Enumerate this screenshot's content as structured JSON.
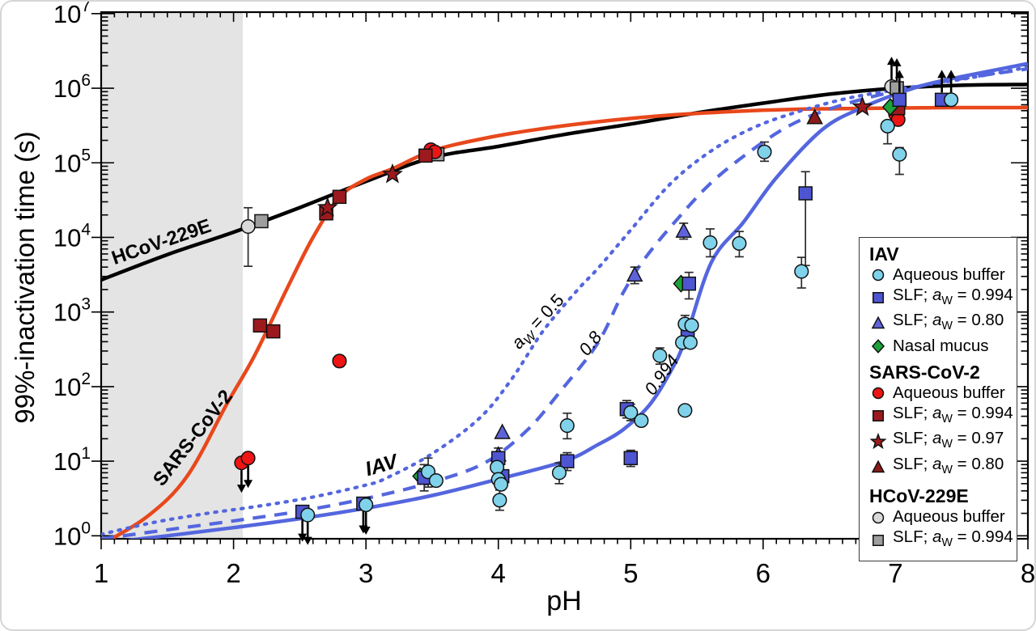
{
  "axes": {
    "x": {
      "label": "pH",
      "min": 1,
      "max": 8,
      "major_ticks": [
        1,
        2,
        3,
        4,
        5,
        6,
        7,
        8
      ],
      "minor_step": 0.1
    },
    "y": {
      "label": "99%-inactivation time (s)",
      "scale": "log",
      "tick_exponents": [
        0,
        1,
        2,
        3,
        4,
        5,
        6,
        7
      ]
    }
  },
  "shaded_region": {
    "from_ph": 1.0,
    "to_ph": 2.07,
    "color": "#E4E4E4"
  },
  "colors": {
    "black_curve": "#000000",
    "red_curve": "#E8481C",
    "blue_curve": "#5466DE",
    "iav_aqueous": "#7FD2EA",
    "iav_slf994": "#4E55D2",
    "iav_slf80": "#5F63DA",
    "iav_mucus": "#1CA23A",
    "sars_aqueous": "#EE1515",
    "sars_dark_red": "#9C1A1E",
    "sars_slf80": "#8C1A1A",
    "hcov_aqueous": "#D9D9D9",
    "hcov_slf994": "#9E9E9E",
    "error_bar": "#2b2b2b",
    "frame": "#000000"
  },
  "curve_labels": [
    {
      "id": "hcov",
      "text": "HCoV-229E",
      "ph": 1.47,
      "log_t": 3.86,
      "rot": -19,
      "bold": true,
      "italic": false,
      "size": 24
    },
    {
      "id": "sars",
      "text": "SARS-CoV-2",
      "ph": 1.73,
      "log_t": 1.26,
      "rot": -52,
      "bold": true,
      "italic": false,
      "size": 24
    },
    {
      "id": "iav",
      "text": "IAV",
      "ph": 3.13,
      "log_t": 0.86,
      "rot": -16,
      "bold": true,
      "italic": true,
      "size": 25
    },
    {
      "id": "aw05",
      "pre": "a",
      "sub": "W",
      "post": " = 0.5",
      "ph": 4.33,
      "log_t": 2.82,
      "rot": -47,
      "bold": false,
      "italic": true,
      "size": 22
    },
    {
      "id": "aw08",
      "text": "0.8",
      "ph": 4.73,
      "log_t": 2.53,
      "rot": -52,
      "bold": false,
      "italic": true,
      "size": 22
    },
    {
      "id": "aw0994",
      "text": "0.994",
      "ph": 5.27,
      "log_t": 2.11,
      "rot": -54,
      "bold": false,
      "italic": true,
      "size": 22
    }
  ],
  "chart_data": {
    "type": "line+scatter",
    "title": "",
    "xlabel": "pH",
    "ylabel": "99%-inactivation time (s)",
    "x_range": [
      1,
      8
    ],
    "y_range_log10": [
      -0.04,
      7.02
    ],
    "grid": false,
    "legend_position": "right-middle",
    "curves": [
      {
        "id": "hcov-fit",
        "name": "HCoV-229E fit",
        "style": "solid",
        "color": "#000000",
        "width": 4.5,
        "points_ph_log10t": [
          [
            1,
            3.43
          ],
          [
            1.5,
            3.77
          ],
          [
            2,
            4.07
          ],
          [
            2.5,
            4.4
          ],
          [
            3,
            4.75
          ],
          [
            3.5,
            5.07
          ],
          [
            4,
            5.22
          ],
          [
            4.5,
            5.38
          ],
          [
            5,
            5.52
          ],
          [
            5.5,
            5.67
          ],
          [
            6,
            5.8
          ],
          [
            6.5,
            5.92
          ],
          [
            7,
            6.0
          ],
          [
            7.5,
            6.04
          ],
          [
            8,
            6.05
          ]
        ]
      },
      {
        "id": "sars-fit",
        "name": "SARS-CoV-2 fit",
        "style": "solid",
        "color": "#E8481C",
        "width": 4.5,
        "points_ph_log10t": [
          [
            1.0,
            -0.12
          ],
          [
            1.35,
            0.26
          ],
          [
            1.65,
            0.8
          ],
          [
            1.95,
            1.77
          ],
          [
            2.16,
            2.42
          ],
          [
            2.4,
            3.3
          ],
          [
            2.6,
            4.0
          ],
          [
            2.8,
            4.54
          ],
          [
            3,
            4.78
          ],
          [
            3.2,
            4.92
          ],
          [
            3.5,
            5.16
          ],
          [
            3.9,
            5.33
          ],
          [
            4.3,
            5.45
          ],
          [
            4.8,
            5.56
          ],
          [
            5.3,
            5.64
          ],
          [
            5.8,
            5.69
          ],
          [
            6.3,
            5.72
          ],
          [
            6.8,
            5.73
          ],
          [
            7.4,
            5.74
          ],
          [
            8,
            5.74
          ]
        ]
      },
      {
        "id": "iav-fit-aw05",
        "name": "IAV fit; aW = 0.5",
        "style": "dotted",
        "color": "#5466DE",
        "width": 4.2,
        "points_ph_log10t": [
          [
            1,
            0.02
          ],
          [
            1.4,
            0.18
          ],
          [
            1.8,
            0.3
          ],
          [
            2.2,
            0.4
          ],
          [
            2.6,
            0.52
          ],
          [
            3,
            0.68
          ],
          [
            3.15,
            0.77
          ],
          [
            3.5,
            1.1
          ],
          [
            3.86,
            1.58
          ],
          [
            4.1,
            2.1
          ],
          [
            4.34,
            2.75
          ],
          [
            4.6,
            3.3
          ],
          [
            4.75,
            3.58
          ],
          [
            5,
            4.1
          ],
          [
            5.3,
            4.72
          ],
          [
            5.6,
            5.15
          ],
          [
            5.9,
            5.45
          ],
          [
            6.2,
            5.65
          ],
          [
            6.6,
            5.85
          ],
          [
            7,
            5.98
          ],
          [
            7.5,
            6.12
          ],
          [
            8,
            6.28
          ]
        ]
      },
      {
        "id": "iav-fit-aw08",
        "name": "IAV fit; aW = 0.8",
        "style": "dashed",
        "color": "#5466DE",
        "width": 4.2,
        "points_ph_log10t": [
          [
            1,
            -0.04
          ],
          [
            1.5,
            0.08
          ],
          [
            2,
            0.2
          ],
          [
            2.5,
            0.33
          ],
          [
            3,
            0.5
          ],
          [
            3.5,
            0.72
          ],
          [
            3.9,
            0.98
          ],
          [
            4.22,
            1.42
          ],
          [
            4.47,
            1.94
          ],
          [
            4.75,
            2.58
          ],
          [
            4.94,
            3.25
          ],
          [
            5.1,
            3.7
          ],
          [
            5.32,
            4.18
          ],
          [
            5.6,
            4.72
          ],
          [
            5.9,
            5.15
          ],
          [
            6.2,
            5.5
          ],
          [
            6.5,
            5.72
          ],
          [
            6.9,
            5.92
          ],
          [
            7.4,
            6.1
          ],
          [
            8,
            6.26
          ]
        ]
      },
      {
        "id": "iav-fit-aw0994",
        "name": "IAV fit; aW = 0.994",
        "style": "solid",
        "color": "#5466DE",
        "width": 4.5,
        "points_ph_log10t": [
          [
            1,
            -0.1
          ],
          [
            1.5,
            0.0
          ],
          [
            2,
            0.11
          ],
          [
            2.5,
            0.23
          ],
          [
            3,
            0.37
          ],
          [
            3.5,
            0.54
          ],
          [
            4,
            0.76
          ],
          [
            4.5,
            1.0
          ],
          [
            4.75,
            1.22
          ],
          [
            4.94,
            1.42
          ],
          [
            5.14,
            1.75
          ],
          [
            5.3,
            2.2
          ],
          [
            5.41,
            2.62
          ],
          [
            5.61,
            3.67
          ],
          [
            5.85,
            4.2
          ],
          [
            6.1,
            4.8
          ],
          [
            6.45,
            5.45
          ],
          [
            6.75,
            5.74
          ],
          [
            7.05,
            5.95
          ],
          [
            7.35,
            6.1
          ],
          [
            8,
            6.33
          ]
        ]
      }
    ],
    "series_note": "points are [pH, time_s, err_lo_s, err_hi_s, limit_arrow]",
    "series": [
      {
        "id": "hcov-aqueous",
        "virus": "HCoV-229E",
        "medium": "Aqueous buffer",
        "marker": "circle",
        "color": "#D9D9D9",
        "points": [
          [
            2.11,
            14000,
            4100,
            25000
          ],
          [
            6.97,
            1050000,
            null,
            null,
            "up"
          ]
        ]
      },
      {
        "id": "hcov-slf994",
        "virus": "HCoV-229E",
        "medium": "SLF; aW = 0.994",
        "marker": "square",
        "color": "#9E9E9E",
        "points": [
          [
            2.21,
            16500
          ],
          [
            3.54,
            130000
          ],
          [
            7.01,
            1000000,
            null,
            null,
            "up"
          ]
        ]
      },
      {
        "id": "sars-aqueous",
        "virus": "SARS-CoV-2",
        "medium": "Aqueous buffer",
        "marker": "circle",
        "color": "#EE1515",
        "points": [
          [
            2.06,
            9.5,
            null,
            null,
            "down"
          ],
          [
            2.11,
            11,
            null,
            null,
            "down"
          ],
          [
            2.8,
            220,
            185,
            260
          ],
          [
            3.49,
            150000
          ],
          [
            3.52,
            140000
          ],
          [
            7.0,
            450000
          ],
          [
            7.02,
            380000
          ]
        ]
      },
      {
        "id": "sars-slf994",
        "virus": "SARS-CoV-2",
        "medium": "SLF; aW = 0.994",
        "marker": "square",
        "color": "#9C1A1E",
        "points": [
          [
            2.2,
            660
          ],
          [
            2.3,
            550
          ],
          [
            2.7,
            21000
          ],
          [
            2.8,
            35000
          ],
          [
            3.45,
            125000
          ],
          [
            7.02,
            540000
          ]
        ]
      },
      {
        "id": "sars-slf97",
        "virus": "SARS-CoV-2",
        "medium": "SLF; aW = 0.97",
        "marker": "star",
        "color": "#9C1A1E",
        "points": [
          [
            2.71,
            25000
          ],
          [
            3.2,
            70000
          ],
          [
            6.75,
            560000
          ]
        ]
      },
      {
        "id": "sars-slf80",
        "virus": "SARS-CoV-2",
        "medium": "SLF; aW = 0.80",
        "marker": "triangle",
        "color": "#8C1A1A",
        "points": [
          [
            6.39,
            400000
          ]
        ]
      },
      {
        "id": "iav-slf80",
        "virus": "IAV",
        "medium": "SLF; aW = 0.80",
        "marker": "triangle",
        "color": "#5F63DA",
        "points": [
          [
            4.0,
            12
          ],
          [
            4.03,
            24
          ],
          [
            5.03,
            3100,
            2400,
            4000
          ],
          [
            5.4,
            12000,
            9500,
            15500
          ]
        ]
      },
      {
        "id": "iav-mucus",
        "virus": "IAV",
        "medium": "Nasal mucus",
        "marker": "diamond",
        "color": "#1CA23A",
        "points": [
          [
            3.41,
            6.3
          ],
          [
            5.38,
            2400
          ],
          [
            6.96,
            560000
          ]
        ]
      },
      {
        "id": "iav-slf994",
        "virus": "IAV",
        "medium": "SLF; aW = 0.994",
        "marker": "square",
        "color": "#4E55D2",
        "points": [
          [
            2.52,
            2.1,
            null,
            null,
            "down"
          ],
          [
            2.98,
            2.7,
            null,
            null,
            "down"
          ],
          [
            3.44,
            6.0,
            4,
            9
          ],
          [
            4.0,
            11,
            8,
            15
          ],
          [
            4.03,
            6.3
          ],
          [
            4.52,
            10,
            7.5,
            13
          ],
          [
            4.97,
            50,
            38,
            65
          ],
          [
            5.0,
            11,
            8.5,
            14
          ],
          [
            5.44,
            2400,
            1500,
            3400
          ],
          [
            5.43,
            510
          ],
          [
            6.32,
            39000,
            4200,
            76000
          ],
          [
            7.03,
            700000,
            null,
            null,
            "up"
          ],
          [
            7.35,
            700000,
            null,
            null,
            "up"
          ]
        ]
      },
      {
        "id": "iav-aqueous",
        "virus": "IAV",
        "medium": "Aqueous buffer",
        "marker": "circle",
        "color": "#7FD2EA",
        "points": [
          [
            2.56,
            1.9,
            null,
            null,
            "down"
          ],
          [
            3.0,
            2.6,
            null,
            null,
            "down"
          ],
          [
            3.47,
            7.2,
            4.5,
            11
          ],
          [
            3.53,
            5.5
          ],
          [
            3.99,
            8.3,
            6,
            11
          ],
          [
            4.0,
            5.7
          ],
          [
            4.02,
            4.9
          ],
          [
            4.01,
            3.0,
            2.2,
            4.1
          ],
          [
            4.52,
            30,
            20,
            44
          ],
          [
            4.46,
            7,
            5,
            9.5
          ],
          [
            5.0,
            45,
            35,
            58
          ],
          [
            5.08,
            35
          ],
          [
            5.22,
            260,
            200,
            330
          ],
          [
            5.41,
            48
          ],
          [
            5.41,
            690,
            520,
            900
          ],
          [
            5.46,
            660
          ],
          [
            5.39,
            390
          ],
          [
            5.45,
            390
          ],
          [
            5.6,
            8500,
            5500,
            13000
          ],
          [
            5.82,
            8300,
            5500,
            12000
          ],
          [
            6.01,
            140000,
            105000,
            190000
          ],
          [
            6.29,
            3500,
            2100,
            5400
          ],
          [
            6.94,
            310000,
            180000,
            360000
          ],
          [
            7.03,
            130000,
            70000,
            160000
          ],
          [
            7.42,
            700000,
            null,
            null,
            "up"
          ]
        ]
      }
    ]
  },
  "legend": {
    "groups": [
      {
        "title": "IAV",
        "items": [
          {
            "marker": "circle",
            "color": "#7FD2EA",
            "pre": "Aqueous buffer",
            "avar": false,
            "sub": "",
            "post": ""
          },
          {
            "marker": "square",
            "color": "#4E55D2",
            "pre": "SLF; ",
            "avar": true,
            "sub": "W",
            "post": " = 0.994"
          },
          {
            "marker": "triangle",
            "color": "#5F63DA",
            "pre": "SLF; ",
            "avar": true,
            "sub": "W",
            "post": " = 0.80"
          },
          {
            "marker": "diamond",
            "color": "#1CA23A",
            "pre": "Nasal mucus",
            "avar": false,
            "sub": "",
            "post": ""
          }
        ]
      },
      {
        "title": "SARS-CoV-2",
        "items": [
          {
            "marker": "circle",
            "color": "#EE1515",
            "pre": "Aqueous buffer",
            "avar": false,
            "sub": "",
            "post": ""
          },
          {
            "marker": "square",
            "color": "#9C1A1E",
            "pre": "SLF; ",
            "avar": true,
            "sub": "W",
            "post": " = 0.994"
          },
          {
            "marker": "star",
            "color": "#9C1A1E",
            "pre": "SLF; ",
            "avar": true,
            "sub": "W",
            "post": " = 0.97"
          },
          {
            "marker": "triangle",
            "color": "#8C1A1A",
            "pre": "SLF; ",
            "avar": true,
            "sub": "W",
            "post": " = 0.80"
          }
        ]
      },
      {
        "title": "HCoV-229E",
        "items": [
          {
            "marker": "circle",
            "color": "#D9D9D9",
            "pre": "Aqueous buffer",
            "avar": false,
            "sub": "",
            "post": ""
          },
          {
            "marker": "square",
            "color": "#9E9E9E",
            "pre": "SLF; ",
            "avar": true,
            "sub": "W",
            "post": " = 0.994"
          }
        ]
      }
    ]
  }
}
